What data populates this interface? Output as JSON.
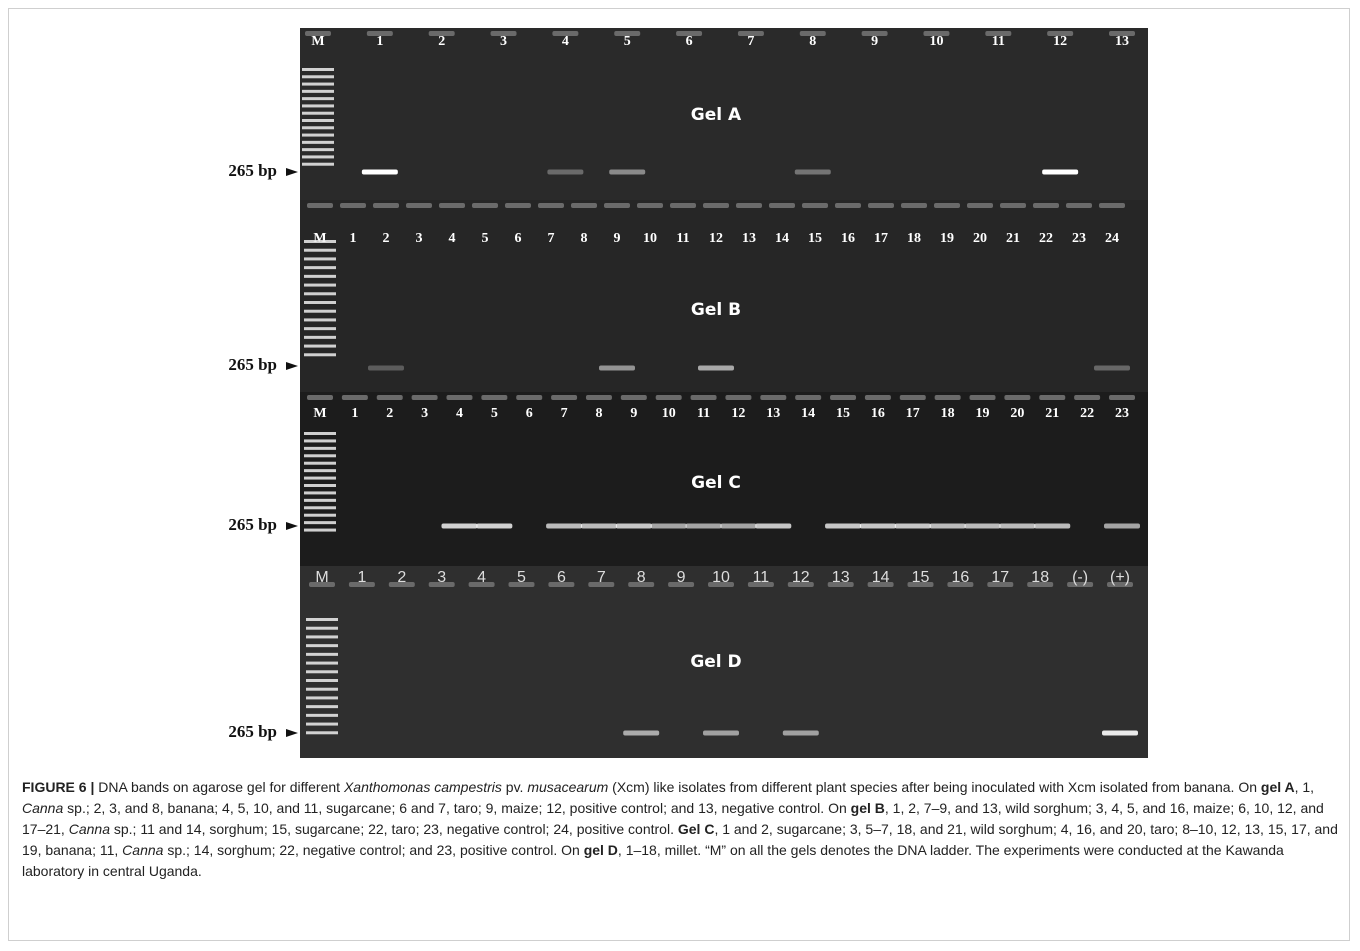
{
  "figure": {
    "gels": [
      {
        "title": "Gel A",
        "size_label": "265 bp",
        "lanes": [
          "M",
          "1",
          "2",
          "3",
          "4",
          "5",
          "6",
          "7",
          "8",
          "9",
          "10",
          "11",
          "12",
          "13"
        ]
      },
      {
        "title": "Gel B",
        "size_label": "265 bp",
        "lanes": [
          "M",
          "1",
          "2",
          "3",
          "4",
          "5",
          "6",
          "7",
          "8",
          "9",
          "10",
          "11",
          "12",
          "13",
          "14",
          "15",
          "16",
          "17",
          "18",
          "19",
          "20",
          "21",
          "22",
          "23",
          "24"
        ]
      },
      {
        "title": "Gel C",
        "size_label": "265 bp",
        "lanes": [
          "M",
          "1",
          "2",
          "3",
          "4",
          "5",
          "6",
          "7",
          "8",
          "9",
          "10",
          "11",
          "12",
          "13",
          "14",
          "15",
          "16",
          "17",
          "18",
          "19",
          "20",
          "21",
          "22",
          "23"
        ]
      },
      {
        "title": "Gel D",
        "size_label": "265 bp",
        "lanes": [
          "M",
          "1",
          "2",
          "3",
          "4",
          "5",
          "6",
          "7",
          "8",
          "9",
          "10",
          "11",
          "12",
          "13",
          "14",
          "15",
          "16",
          "17",
          "18",
          "(-)",
          "(+)"
        ]
      }
    ],
    "caption": [
      "FIGURE 6 |",
      " DNA bands on agarose gel for different ",
      "Xanthomonas campestris",
      " pv. ",
      "musacearum",
      " (Xcm) like isolates from different plant species after being inoculated with Xcm isolated from banana. On ",
      "gel A",
      ", 1, ",
      "Canna",
      " sp.; 2, 3, and 8, banana; 4, 5, 10, and 11, sugarcane; 6 and 7, taro; 9, maize; 12, positive control; and 13, negative control. On ",
      "gel B",
      ", 1, 2, 7–9, and 13, wild sorghum; 3, 4, 5, and 16, maize; 6, 10, 12, and 17–21, ",
      "Canna",
      " sp.; 11 and 14, sorghum; 15, sugarcane; 22, taro; 23, negative control; 24, positive control. ",
      "Gel C",
      ", 1 and 2, sugarcane; 3, 5–7, 18, and 21, wild sorghum; 4, 16, and 20, taro; 8–10, 12, 13, 15, 17, and 19, banana; 11, ",
      "Canna",
      " sp.; 14, sorghum; 22, negative control; and 23, positive control. On ",
      "gel D",
      ", 1–18, millet. “M” on all the gels denotes the DNA ladder. The experiments were conducted at the Kawanda laboratory in central Uganda."
    ]
  }
}
